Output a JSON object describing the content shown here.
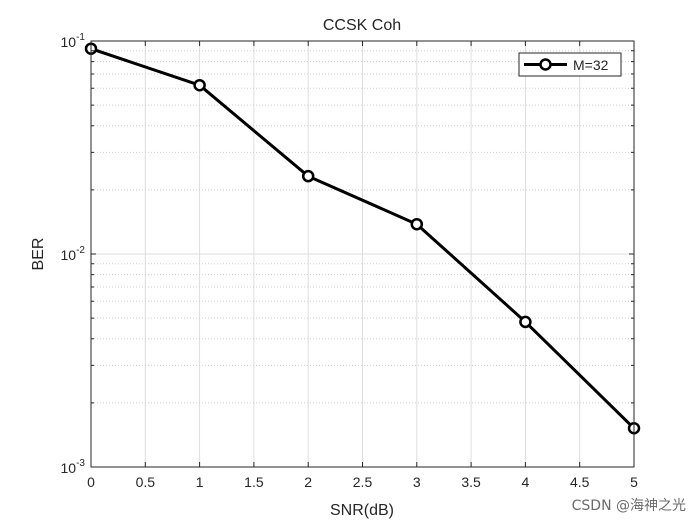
{
  "chart_data": {
    "type": "line",
    "title": "CCSK Coh",
    "xlabel": "SNR(dB)",
    "ylabel": "BER",
    "x": [
      0,
      1,
      2,
      3,
      4,
      5
    ],
    "series": [
      {
        "name": "M=32",
        "values": [
          0.092,
          0.062,
          0.0232,
          0.0138,
          0.0048,
          0.00152
        ]
      }
    ],
    "xlim": [
      0,
      5
    ],
    "ylim": [
      0.001,
      0.1
    ],
    "yscale": "log",
    "x_ticks": [
      "0",
      "0.5",
      "1",
      "1.5",
      "2",
      "2.5",
      "3",
      "3.5",
      "4",
      "4.5",
      "5"
    ],
    "x_tick_values": [
      0,
      0.5,
      1,
      1.5,
      2,
      2.5,
      3,
      3.5,
      4,
      4.5,
      5
    ],
    "y_tick_values": [
      0.1,
      0.01,
      0.001
    ],
    "y_ticks": [
      {
        "base": "10",
        "exp": "-1"
      },
      {
        "base": "10",
        "exp": "-2"
      },
      {
        "base": "10",
        "exp": "-3"
      }
    ],
    "grid": true,
    "minor_grid": true,
    "legend_position": "top-right",
    "marker": "circle",
    "line_color": "#000000"
  },
  "watermark": "CSDN @海神之光"
}
